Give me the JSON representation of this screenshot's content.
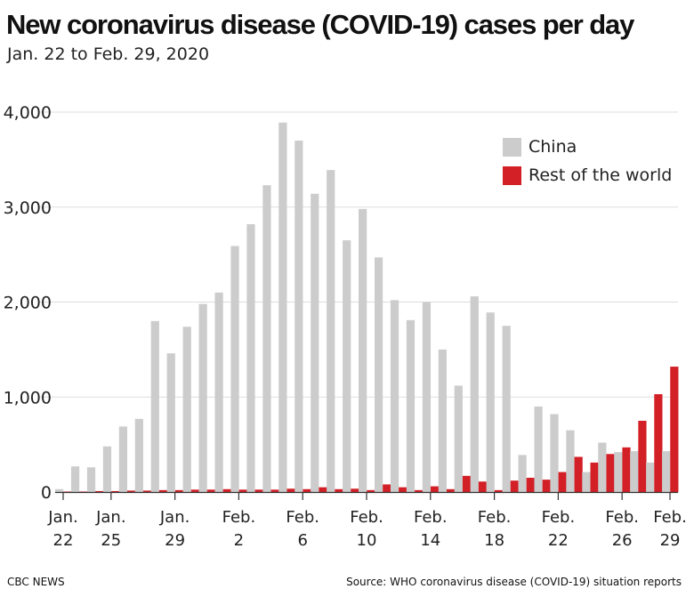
{
  "header": {
    "title": "New coronavirus disease (COVID-19) cases per day",
    "subtitle": "Jan. 22 to Feb. 29, 2020"
  },
  "legend": [
    {
      "label": "China",
      "color": "#cccccc"
    },
    {
      "label": "Rest of the world",
      "color": "#d31f26"
    }
  ],
  "footer": {
    "source_left": "CBC NEWS",
    "source_right": "Source: WHO coronavirus disease (COVID-19) situation reports"
  },
  "chart_data": {
    "type": "bar",
    "title": "New coronavirus disease (COVID-19) cases per day",
    "subtitle": "Jan. 22 to Feb. 29, 2020",
    "ylim": [
      0,
      4000
    ],
    "yticks": [
      0,
      1000,
      2000,
      3000,
      4000
    ],
    "ytick_labels": [
      "0",
      "1,000",
      "2,000",
      "3,000",
      "4,000"
    ],
    "grid": true,
    "legend_position": "top-right",
    "categories": [
      "Jan. 22",
      "Jan. 23",
      "Jan. 24",
      "Jan. 25",
      "Jan. 26",
      "Jan. 27",
      "Jan. 28",
      "Jan. 29",
      "Jan. 30",
      "Jan. 31",
      "Feb. 1",
      "Feb. 2",
      "Feb. 3",
      "Feb. 4",
      "Feb. 5",
      "Feb. 6",
      "Feb. 7",
      "Feb. 8",
      "Feb. 9",
      "Feb. 10",
      "Feb. 11",
      "Feb. 12",
      "Feb. 13",
      "Feb. 14",
      "Feb. 15",
      "Feb. 16",
      "Feb. 17",
      "Feb. 18",
      "Feb. 19",
      "Feb. 20",
      "Feb. 21",
      "Feb. 22",
      "Feb. 23",
      "Feb. 24",
      "Feb. 25",
      "Feb. 26",
      "Feb. 27",
      "Feb. 28",
      "Feb. 29"
    ],
    "xtick_labels": [
      {
        "index": 0,
        "line1": "Jan.",
        "line2": "22"
      },
      {
        "index": 3,
        "line1": "Jan.",
        "line2": "25"
      },
      {
        "index": 7,
        "line1": "Jan.",
        "line2": "29"
      },
      {
        "index": 11,
        "line1": "Feb.",
        "line2": "2"
      },
      {
        "index": 15,
        "line1": "Feb.",
        "line2": "6"
      },
      {
        "index": 19,
        "line1": "Feb.",
        "line2": "10"
      },
      {
        "index": 23,
        "line1": "Feb.",
        "line2": "14"
      },
      {
        "index": 27,
        "line1": "Feb.",
        "line2": "18"
      },
      {
        "index": 31,
        "line1": "Feb.",
        "line2": "22"
      },
      {
        "index": 35,
        "line1": "Feb.",
        "line2": "26"
      },
      {
        "index": 38,
        "line1": "Feb.",
        "line2": "29"
      }
    ],
    "series": [
      {
        "name": "China",
        "color": "#cccccc",
        "values": [
          30,
          270,
          260,
          480,
          690,
          770,
          1800,
          1460,
          1740,
          1980,
          2100,
          2590,
          2820,
          3230,
          3890,
          3700,
          3140,
          3390,
          2650,
          2980,
          2470,
          2020,
          1810,
          2000,
          1500,
          1120,
          2060,
          1890,
          1750,
          390,
          900,
          820,
          650,
          210,
          520,
          420,
          430,
          310,
          430
        ]
      },
      {
        "name": "Rest of the world",
        "color": "#d31f26",
        "values": [
          5,
          5,
          10,
          10,
          15,
          15,
          20,
          20,
          25,
          25,
          30,
          25,
          25,
          25,
          35,
          30,
          50,
          30,
          35,
          20,
          80,
          50,
          20,
          60,
          30,
          170,
          110,
          20,
          120,
          150,
          130,
          210,
          370,
          310,
          400,
          470,
          750,
          1030,
          1320
        ]
      }
    ]
  }
}
